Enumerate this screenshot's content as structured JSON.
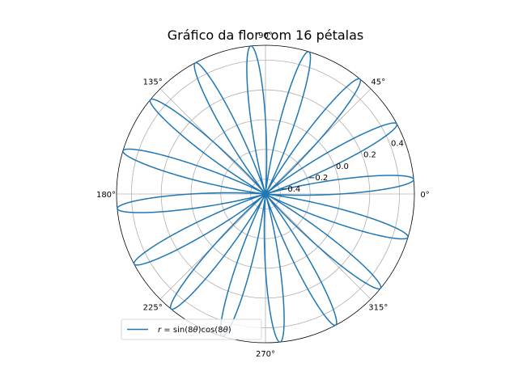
{
  "chart_data": {
    "type": "line",
    "projection": "polar",
    "title": "Gráfico da flor com 16 pétalas",
    "series": [
      {
        "name": "r = sin(8θ)cos(8θ)",
        "formula": "r = sin(8*theta)*cos(8*theta)",
        "theta_range_deg": [
          0,
          360
        ],
        "color": "#1f77b4"
      }
    ],
    "rlim": [
      -0.5,
      0.5
    ],
    "radial_ticks": [
      "−0.4",
      "−0.2",
      "0.0",
      "0.2",
      "0.4"
    ],
    "radial_tick_values": [
      -0.4,
      -0.2,
      0.0,
      0.2,
      0.4
    ],
    "angle_ticks": [
      "0°",
      "45°",
      "90°",
      "135°",
      "180°",
      "225°",
      "270°",
      "315°"
    ],
    "angle_tick_values_deg": [
      0,
      45,
      90,
      135,
      180,
      225,
      270,
      315
    ],
    "grid": true,
    "legend_position": "lower left",
    "legend": {
      "label_prefix": "r",
      "label_equals": " = sin(8",
      "label_theta1": "θ",
      "label_mid": ")cos(8",
      "label_theta2": "θ",
      "label_end": ")"
    }
  }
}
